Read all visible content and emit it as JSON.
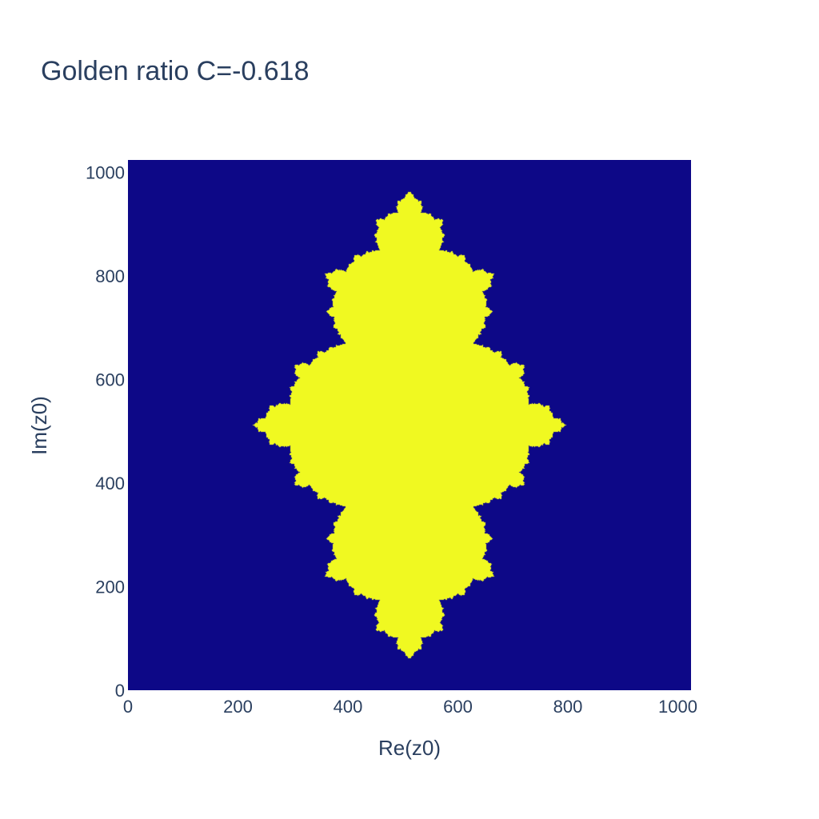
{
  "chart_data": {
    "type": "heatmap",
    "title": "Golden ratio C=-0.618",
    "xlabel": "Re(z0)",
    "ylabel": "Im(z0)",
    "xlim": [
      0,
      1024
    ],
    "ylim": [
      0,
      1024
    ],
    "x_ticks": [
      "0",
      "200",
      "400",
      "600",
      "800",
      "1000"
    ],
    "y_ticks": [
      "0",
      "200",
      "400",
      "600",
      "800",
      "1000"
    ],
    "julia_c": -0.618,
    "colors": {
      "background": "#0d0887",
      "set": "#f0f921"
    }
  }
}
